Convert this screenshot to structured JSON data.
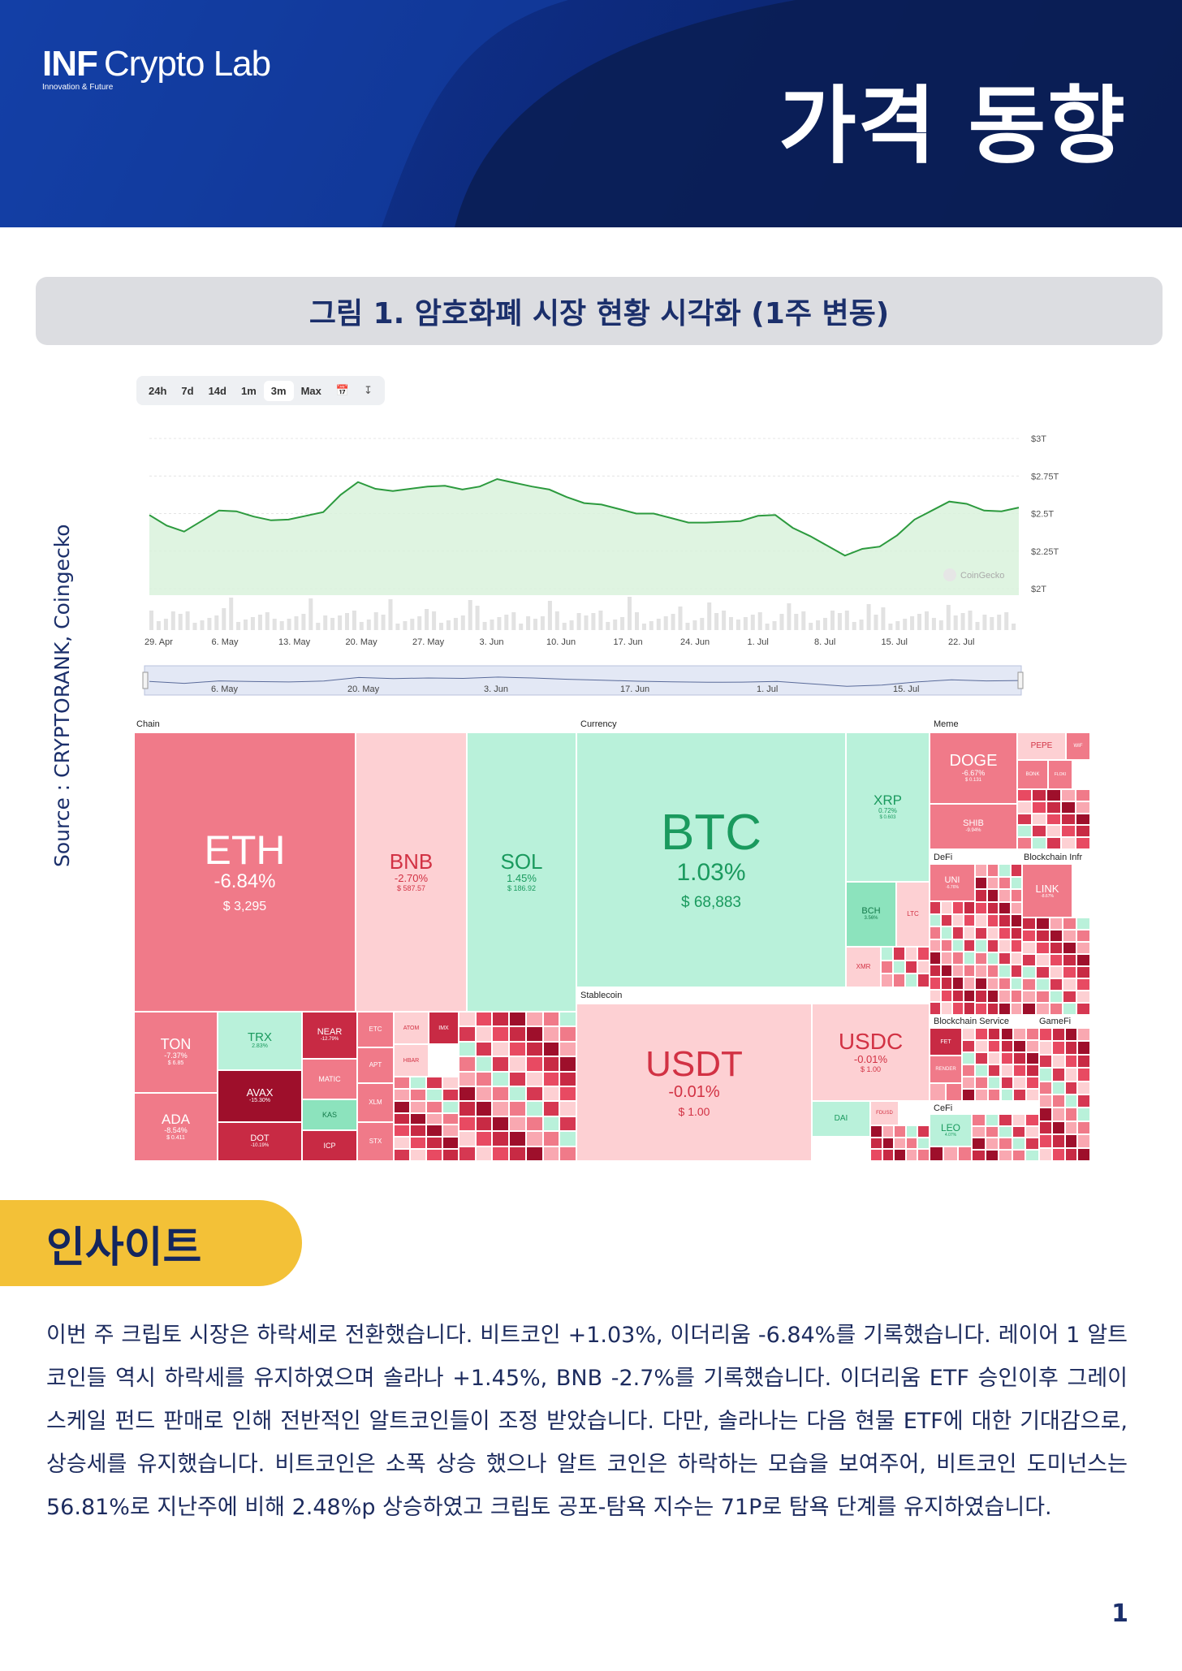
{
  "header": {
    "logo_main": "INF",
    "logo_rest": "Crypto Lab",
    "logo_tagline": "Innovation & Future",
    "title": "가격 동향"
  },
  "figure": {
    "caption": "그림 1. 암호화폐 시장 현황 시각화 (1주 변동)",
    "source": "Source : CRYPTORANK, Coingecko"
  },
  "price_chart": {
    "toolbar": [
      "24h",
      "7d",
      "14d",
      "1m",
      "3m",
      "Max"
    ],
    "toolbar_active": "3m",
    "toolbar_icons": [
      "calendar-icon",
      "download-icon"
    ],
    "watermark": "CoinGecko",
    "y_ticks": [
      "$3T",
      "$2.75T",
      "$2.5T",
      "$2.25T",
      "$2T"
    ],
    "x_ticks": [
      "29. Apr",
      "6. May",
      "13. May",
      "20. May",
      "27. May",
      "3. Jun",
      "10. Jun",
      "17. Jun",
      "24. Jun",
      "1. Jul",
      "8. Jul",
      "15. Jul",
      "22. Jul"
    ],
    "navigator_ticks": [
      "6. May",
      "20. May",
      "3. Jun",
      "17. Jun",
      "1. Jul",
      "15. Jul"
    ],
    "line_color": "#2c9a3e"
  },
  "chart_data": {
    "type": "area",
    "title": "",
    "xlabel": "",
    "ylabel": "",
    "ylim": [
      2.0,
      3.0
    ],
    "x": [
      "29. Apr",
      "2. May",
      "6. May",
      "9. May",
      "13. May",
      "16. May",
      "20. May",
      "23. May",
      "27. May",
      "30. May",
      "3. Jun",
      "6. Jun",
      "10. Jun",
      "13. Jun",
      "17. Jun",
      "20. Jun",
      "24. Jun",
      "27. Jun",
      "1. Jul",
      "4. Jul",
      "8. Jul",
      "11. Jul",
      "15. Jul",
      "18. Jul",
      "22. Jul",
      "25. Jul"
    ],
    "series": [
      {
        "values": [
          2.49,
          2.38,
          2.52,
          2.48,
          2.46,
          2.51,
          2.71,
          2.65,
          2.68,
          2.66,
          2.73,
          2.68,
          2.61,
          2.56,
          2.5,
          2.47,
          2.44,
          2.45,
          2.49,
          2.35,
          2.22,
          2.28,
          2.46,
          2.58,
          2.52,
          2.54
        ]
      }
    ],
    "volume_bars": true
  },
  "treemap": {
    "groups": [
      "Chain",
      "Currency",
      "Meme",
      "DeFi",
      "Blockchain Infr",
      "Stablecoin",
      "Blockchain Service",
      "GameFi",
      "CeFi"
    ],
    "tiles": {
      "eth": {
        "symbol": "ETH",
        "change": "-6.84%",
        "price": "$ 3,295"
      },
      "bnb": {
        "symbol": "BNB",
        "change": "-2.70%",
        "price": "$ 587.57"
      },
      "sol": {
        "symbol": "SOL",
        "change": "1.45%",
        "price": "$ 186.92"
      },
      "btc": {
        "symbol": "BTC",
        "change": "1.03%",
        "price": "$ 68,883"
      },
      "xrp": {
        "symbol": "XRP",
        "change": "0.72%",
        "price": "$ 0.603"
      },
      "bch": {
        "symbol": "BCH",
        "change": "3.56%"
      },
      "ltc": {
        "symbol": "LTC"
      },
      "xmr": {
        "symbol": "XMR"
      },
      "doge": {
        "symbol": "DOGE",
        "change": "-6.67%",
        "price": "$ 0.131"
      },
      "shib": {
        "symbol": "SHIB",
        "change": "-9.94%"
      },
      "pepe": {
        "symbol": "PEPE"
      },
      "wif": {
        "symbol": "WIF"
      },
      "bonk": {
        "symbol": "BONK"
      },
      "floki": {
        "symbol": "FLOKI"
      },
      "uni": {
        "symbol": "UNI",
        "change": "-6.76%"
      },
      "link": {
        "symbol": "LINK",
        "change": "-8.67%"
      },
      "ton": {
        "symbol": "TON",
        "change": "-7.37%",
        "price": "$ 6.85"
      },
      "trx": {
        "symbol": "TRX",
        "change": "2.83%"
      },
      "near": {
        "symbol": "NEAR",
        "change": "-12.79%"
      },
      "ada": {
        "symbol": "ADA",
        "change": "-8.54%",
        "price": "$ 0.411"
      },
      "avax": {
        "symbol": "AVAX",
        "change": "-15.30%"
      },
      "dot": {
        "symbol": "DOT",
        "change": "-10.19%"
      },
      "matic": {
        "symbol": "MATIC"
      },
      "kas": {
        "symbol": "KAS"
      },
      "icp": {
        "symbol": "ICP"
      },
      "etc": {
        "symbol": "ETC"
      },
      "apt": {
        "symbol": "APT"
      },
      "xlm": {
        "symbol": "XLM"
      },
      "stx": {
        "symbol": "STX"
      },
      "atom": {
        "symbol": "ATOM"
      },
      "hbar": {
        "symbol": "HBAR"
      },
      "imx": {
        "symbol": "IMX"
      },
      "usdt": {
        "symbol": "USDT",
        "change": "-0.01%",
        "price": "$ 1.00"
      },
      "usdc": {
        "symbol": "USDC",
        "change": "-0.01%",
        "price": "$ 1.00"
      },
      "dai": {
        "symbol": "DAI"
      },
      "fdusd": {
        "symbol": "FDUSD"
      },
      "fet": {
        "symbol": "FET"
      },
      "render": {
        "symbol": "RENDER"
      },
      "leo": {
        "symbol": "LEO",
        "change": "4.07%"
      }
    }
  },
  "insight": {
    "heading": "인사이트",
    "body": "이번 주 크립토 시장은 하락세로 전환했습니다. 비트코인 +1.03%, 이더리움 -6.84%를 기록했습니다. 레이어 1 알트 코인들 역시 하락세를 유지하였으며 솔라나 +1.45%, BNB -2.7%를 기록했습니다. 이더리움 ETF 승인이후 그레이스케일 펀드 판매로 인해 전반적인 알트코인들이 조정 받았습니다. 다만, 솔라나는 다음 현물 ETF에 대한 기대감으로, 상승세를 유지했습니다. 비트코인은 소폭 상승 했으나 알트 코인은 하락하는 모습을 보여주어, 비트코인 도미넌스는 56.81%로 지난주에 비해 2.48%p 상승하였고 크립토 공포-탐욕 지수는 71P로 탐욕 단계를 유지하였습니다."
  },
  "page_number": "1"
}
